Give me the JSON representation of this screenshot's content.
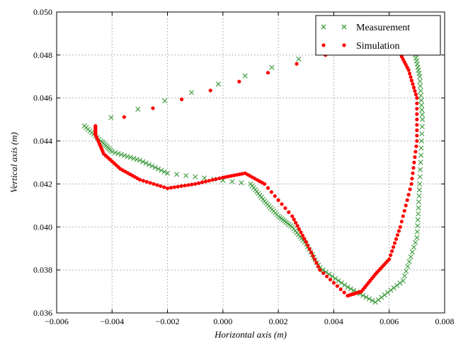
{
  "chart_data": {
    "type": "scatter",
    "xlabel": "Horizontal axis (m)",
    "ylabel": "Vertical axis (m)",
    "xlim": [
      -0.006,
      0.008
    ],
    "ylim": [
      0.036,
      0.05
    ],
    "xticks": [
      "−0.006",
      "−0.004",
      "−0.002",
      "0.000",
      "0.002",
      "0.004",
      "0.006",
      "0.008"
    ],
    "yticks": [
      "0.036",
      "0.038",
      "0.040",
      "0.042",
      "0.044",
      "0.046",
      "0.048",
      "0.050"
    ],
    "grid": true,
    "legend_position": "top-right",
    "series": [
      {
        "name": "Measurement",
        "marker": "x",
        "color": "#3a9a3a",
        "points": [
          [
            0.0037,
            0.0482
          ],
          [
            -0.005,
            0.0447
          ],
          [
            -0.0044,
            0.044
          ],
          [
            -0.004,
            0.0435
          ],
          [
            -0.003,
            0.0431
          ],
          [
            -0.002,
            0.0425
          ],
          [
            0.001,
            0.042
          ],
          [
            0.0015,
            0.0412
          ],
          [
            0.002,
            0.0405
          ],
          [
            0.0025,
            0.04
          ],
          [
            0.003,
            0.0392
          ],
          [
            0.0035,
            0.0381
          ],
          [
            0.0045,
            0.0372
          ],
          [
            0.0055,
            0.0365
          ],
          [
            0.0065,
            0.0375
          ],
          [
            0.007,
            0.0395
          ],
          [
            0.0071,
            0.042
          ],
          [
            0.0072,
            0.045
          ],
          [
            0.0071,
            0.047
          ],
          [
            0.0069,
            0.0483
          ]
        ]
      },
      {
        "name": "Simulation",
        "marker": "dot",
        "color": "#ff0000",
        "points": [
          [
            0.0037,
            0.048
          ],
          [
            -0.0046,
            0.0447
          ],
          [
            -0.0046,
            0.0443
          ],
          [
            -0.0043,
            0.0434
          ],
          [
            -0.0037,
            0.0427
          ],
          [
            -0.003,
            0.0422
          ],
          [
            -0.002,
            0.0418
          ],
          [
            -0.001,
            0.042
          ],
          [
            0.0,
            0.0423
          ],
          [
            0.0008,
            0.0425
          ],
          [
            0.0015,
            0.042
          ],
          [
            0.0025,
            0.0405
          ],
          [
            0.003,
            0.0393
          ],
          [
            0.0035,
            0.038
          ],
          [
            0.0045,
            0.0368
          ],
          [
            0.005,
            0.037
          ],
          [
            0.0055,
            0.0378
          ],
          [
            0.006,
            0.0385
          ],
          [
            0.0064,
            0.04
          ],
          [
            0.0068,
            0.042
          ],
          [
            0.007,
            0.044
          ],
          [
            0.007,
            0.046
          ],
          [
            0.0067,
            0.0473
          ],
          [
            0.0063,
            0.0483
          ]
        ]
      }
    ]
  }
}
